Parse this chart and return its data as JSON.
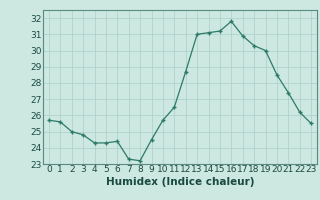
{
  "x": [
    0,
    1,
    2,
    3,
    4,
    5,
    6,
    7,
    8,
    9,
    10,
    11,
    12,
    13,
    14,
    15,
    16,
    17,
    18,
    19,
    20,
    21,
    22,
    23
  ],
  "y": [
    25.7,
    25.6,
    25.0,
    24.8,
    24.3,
    24.3,
    24.4,
    23.3,
    23.2,
    24.5,
    25.7,
    26.5,
    28.7,
    31.0,
    31.1,
    31.2,
    31.8,
    30.9,
    30.3,
    30.0,
    28.5,
    27.4,
    26.2,
    25.5
  ],
  "xlabel": "Humidex (Indice chaleur)",
  "ylim": [
    23,
    32.5
  ],
  "xlim": [
    -0.5,
    23.5
  ],
  "yticks": [
    23,
    24,
    25,
    26,
    27,
    28,
    29,
    30,
    31,
    32
  ],
  "xticks": [
    0,
    1,
    2,
    3,
    4,
    5,
    6,
    7,
    8,
    9,
    10,
    11,
    12,
    13,
    14,
    15,
    16,
    17,
    18,
    19,
    20,
    21,
    22,
    23
  ],
  "line_color": "#2d7a68",
  "marker": "+",
  "bg_color": "#cce8e0",
  "grid_color": "#aacfc8",
  "label_fontsize": 7.5,
  "tick_fontsize": 6.5
}
